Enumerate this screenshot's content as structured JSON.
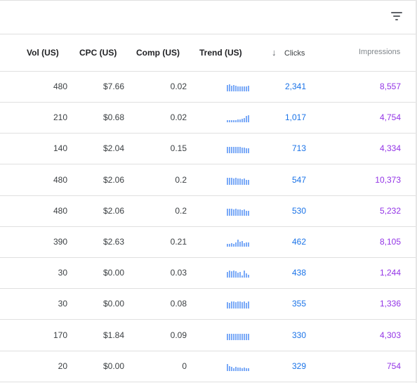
{
  "toolbar": {
    "filter_icon": "filter-list-icon"
  },
  "columns": {
    "vol": "Vol (US)",
    "cpc": "CPC (US)",
    "comp": "Comp (US)",
    "trend": "Trend (US)",
    "clicks": "Clicks",
    "impressions": "Impressions",
    "sort_icon": "arrow-down-icon"
  },
  "colors": {
    "clicks": "#1a73e8",
    "impressions": "#9334e6",
    "trend_bar": "#7baaf7"
  },
  "rows": [
    {
      "vol": "480",
      "cpc": "$7.66",
      "comp": "0.02",
      "clicks": "2,341",
      "impressions": "8,557",
      "trend": [
        9,
        10,
        8,
        9,
        8,
        7,
        7,
        7,
        7,
        7,
        8
      ]
    },
    {
      "vol": "210",
      "cpc": "$0.68",
      "comp": "0.02",
      "clicks": "1,017",
      "impressions": "4,754",
      "trend": [
        3,
        3,
        3,
        3,
        3,
        4,
        4,
        5,
        6,
        9,
        10
      ]
    },
    {
      "vol": "140",
      "cpc": "$2.04",
      "comp": "0.15",
      "clicks": "713",
      "impressions": "4,334",
      "trend": [
        9,
        9,
        9,
        9,
        9,
        9,
        9,
        8,
        8,
        7,
        7
      ]
    },
    {
      "vol": "480",
      "cpc": "$2.06",
      "comp": "0.2",
      "clicks": "547",
      "impressions": "10,373",
      "trend": [
        10,
        10,
        10,
        9,
        10,
        9,
        9,
        8,
        9,
        7,
        7
      ]
    },
    {
      "vol": "480",
      "cpc": "$2.06",
      "comp": "0.2",
      "clicks": "530",
      "impressions": "5,232",
      "trend": [
        10,
        10,
        10,
        9,
        10,
        9,
        9,
        8,
        9,
        7,
        7
      ]
    },
    {
      "vol": "390",
      "cpc": "$2.63",
      "comp": "0.21",
      "clicks": "462",
      "impressions": "8,105",
      "trend": [
        4,
        4,
        5,
        4,
        6,
        10,
        7,
        8,
        5,
        6,
        6
      ]
    },
    {
      "vol": "30",
      "cpc": "$0.00",
      "comp": "0.03",
      "clicks": "438",
      "impressions": "1,244",
      "trend": [
        8,
        10,
        9,
        10,
        9,
        7,
        8,
        3,
        10,
        6,
        4
      ]
    },
    {
      "vol": "30",
      "cpc": "$0.00",
      "comp": "0.08",
      "clicks": "355",
      "impressions": "1,336",
      "trend": [
        9,
        8,
        10,
        10,
        9,
        10,
        10,
        9,
        10,
        8,
        10
      ]
    },
    {
      "vol": "170",
      "cpc": "$1.84",
      "comp": "0.09",
      "clicks": "330",
      "impressions": "4,303",
      "trend": [
        9,
        9,
        9,
        9,
        9,
        9,
        9,
        9,
        9,
        9,
        9
      ]
    },
    {
      "vol": "20",
      "cpc": "$0.00",
      "comp": "0",
      "clicks": "329",
      "impressions": "754",
      "trend": [
        10,
        7,
        6,
        4,
        6,
        5,
        5,
        4,
        5,
        4,
        4
      ]
    }
  ]
}
